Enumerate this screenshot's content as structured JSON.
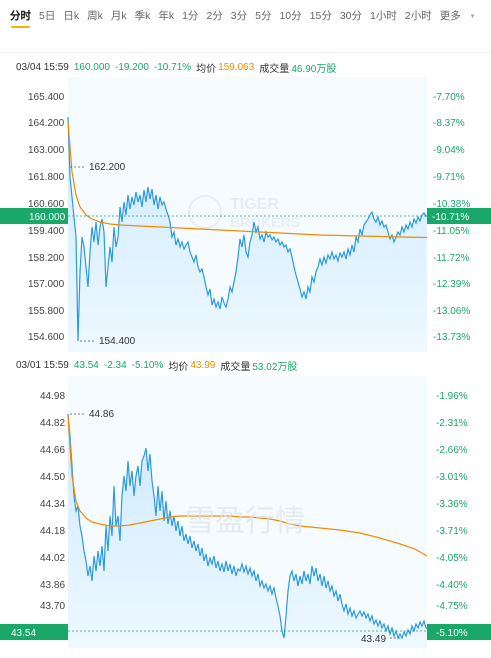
{
  "tabs": [
    {
      "label": "分时",
      "active": true
    },
    {
      "label": "5日"
    },
    {
      "label": "日k"
    },
    {
      "label": "周k"
    },
    {
      "label": "月k"
    },
    {
      "label": "季k"
    },
    {
      "label": "年k"
    },
    {
      "label": "1分"
    },
    {
      "label": "2分"
    },
    {
      "label": "3分"
    },
    {
      "label": "5分"
    },
    {
      "label": "10分"
    },
    {
      "label": "15分"
    },
    {
      "label": "30分"
    },
    {
      "label": "1小时"
    },
    {
      "label": "2小时"
    },
    {
      "label": "更多"
    }
  ],
  "colors": {
    "up": "#1aa86a",
    "line": "#2b9be0",
    "avg": "#f08c00",
    "fill": "#d4efff"
  },
  "chart1": {
    "info": {
      "time": "03/04 15:59",
      "price": "160.000",
      "change": "-19.200",
      "pct": "-10.71%",
      "avg_label": "均价",
      "avg": "159.063",
      "vol_label": "成交量",
      "vol": "46.90万股"
    },
    "left_ticks": [
      "165.400",
      "164.200",
      "163.000",
      "161.800",
      "160.600",
      "159.400",
      "158.200",
      "157.000",
      "155.800",
      "154.600"
    ],
    "right_ticks": [
      "-7.70%",
      "-8.37%",
      "-9.04%",
      "-9.71%",
      "-10.38%",
      "-11.05%",
      "-11.72%",
      "-12.39%",
      "-13.06%",
      "-13.73%"
    ],
    "last_price_tag": "160.000",
    "last_pct_tag": "-10.71%",
    "high_label": "162.200",
    "low_label": "154.400",
    "watermark_1": "TIGER",
    "watermark_2": "BROKERS"
  },
  "chart2": {
    "info": {
      "time": "03/01 15:59",
      "price": "43.54",
      "change": "-2.34",
      "pct": "-5.10%",
      "avg_label": "均价",
      "avg": "43.99",
      "vol_label": "成交量",
      "vol": "53.02万股"
    },
    "left_ticks": [
      "44.98",
      "44.82",
      "44.66",
      "44.50",
      "44.34",
      "44.18",
      "44.02",
      "43.86",
      "43.70",
      "43.54"
    ],
    "right_ticks": [
      "-1.96%",
      "-2.31%",
      "-2.66%",
      "-3.01%",
      "-3.36%",
      "-3.71%",
      "-4.05%",
      "-4.40%",
      "-4.75%",
      "-5.10%"
    ],
    "last_price_tag": "43.54",
    "last_pct_tag": "-5.10%",
    "high_label": "44.86",
    "low_label": "43.49",
    "watermark": "雪盈行情"
  }
}
